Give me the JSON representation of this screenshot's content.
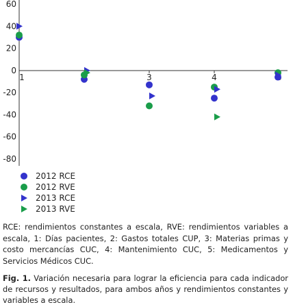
{
  "chart_data": {
    "type": "scatter",
    "x": [
      1,
      2,
      3,
      4,
      5
    ],
    "xticks": [
      "1",
      "2",
      "3",
      "4",
      "5"
    ],
    "yticks": [
      60,
      40,
      20,
      0,
      -20,
      -40,
      -60,
      -80
    ],
    "ylim": [
      -80,
      60
    ],
    "xlim": [
      1,
      5
    ],
    "series": [
      {
        "name": "2012 RCE",
        "marker": "circle",
        "color": "#3333cc",
        "values": [
          30,
          -8,
          -13,
          -25,
          -6
        ]
      },
      {
        "name": "2012 RVE",
        "marker": "circle",
        "color": "#1a9d4a",
        "values": [
          32,
          -4,
          -32,
          -15,
          -2
        ]
      },
      {
        "name": "2013 RCE",
        "marker": "triangle",
        "color": "#3333cc",
        "values": [
          40,
          0,
          -23,
          -17,
          -4
        ]
      },
      {
        "name": "2013 RVE",
        "marker": "triangle",
        "color": "#1a9d4a",
        "values": [
          null,
          -2,
          null,
          -42,
          null
        ]
      }
    ]
  },
  "note": "RCE: rendimientos constantes a escala, RVE: rendimientos variables a escala, 1: Días pacientes, 2: Gastos totales CUP, 3: Materias primas y costo mercancías CUC, 4: Mantenimiento CUC, 5: Medicamentos y Servicios Médicos CUC.",
  "caption": {
    "label": "Fig. 1.",
    "text": "Variación necesaria para lograr la eficiencia para cada indicador de recursos y resultados, para ambos años y rendimientos constantes y variables a escala."
  }
}
